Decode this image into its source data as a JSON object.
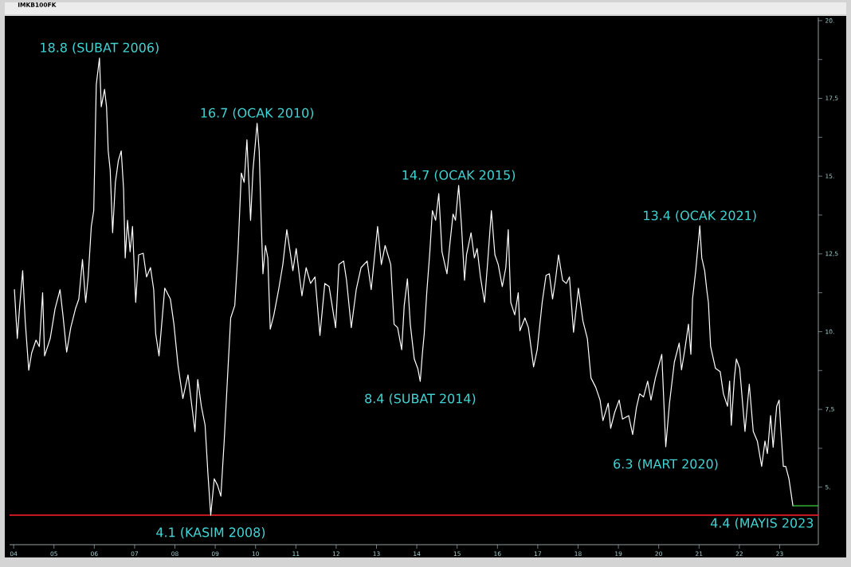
{
  "chart_data": {
    "type": "line",
    "title": "IMKB100FK",
    "series": [
      {
        "color": "#ffffff",
        "x": [
          "2004-01-08",
          "2004-02-03",
          "2004-02-25",
          "2004-03-23",
          "2004-04-15",
          "2004-05-17",
          "2004-06-13",
          "2004-07-22",
          "2004-08-21",
          "2004-09-20",
          "2004-10-08",
          "2004-11-28",
          "2005-01-11",
          "2005-02-25",
          "2005-03-23",
          "2005-04-26",
          "2005-06-02",
          "2005-07-15",
          "2005-08-14",
          "2005-09-16",
          "2005-10-15",
          "2005-11-07",
          "2005-12-05",
          "2005-12-27",
          "2006-01-19",
          "2006-02-17",
          "2006-03-05",
          "2006-04-04",
          "2006-04-22",
          "2006-05-07",
          "2006-05-25",
          "2006-06-16",
          "2006-07-11",
          "2006-08-07",
          "2006-09-02",
          "2006-09-23",
          "2006-10-08",
          "2006-10-29",
          "2006-11-21",
          "2006-12-13",
          "2007-01-11",
          "2007-02-07",
          "2007-03-20",
          "2007-04-19",
          "2007-05-25",
          "2007-06-23",
          "2007-07-11",
          "2007-08-10",
          "2007-10-01",
          "2007-11-21",
          "2007-12-23",
          "2008-01-29",
          "2008-03-13",
          "2008-04-29",
          "2008-07-01",
          "2008-07-26",
          "2008-08-28",
          "2008-10-01",
          "2008-10-26",
          "2008-11-21",
          "2008-12-23",
          "2009-01-22",
          "2009-02-21",
          "2009-03-23",
          "2009-04-22",
          "2009-05-21",
          "2009-06-27",
          "2009-07-26",
          "2009-08-25",
          "2009-09-20",
          "2009-10-15",
          "2009-11-17",
          "2009-12-09",
          "2010-01-15",
          "2010-02-03",
          "2010-02-21",
          "2010-03-09",
          "2010-04-01",
          "2010-04-22",
          "2010-05-14",
          "2010-06-16",
          "2010-07-29",
          "2010-09-05",
          "2010-10-11",
          "2010-11-10",
          "2010-12-05",
          "2011-01-04",
          "2011-02-03",
          "2011-02-25",
          "2011-04-04",
          "2011-05-14",
          "2011-06-23",
          "2011-08-07",
          "2011-09-20",
          "2011-10-29",
          "2011-12-27",
          "2012-01-26",
          "2012-03-09",
          "2012-04-04",
          "2012-05-17",
          "2012-07-01",
          "2012-08-14",
          "2012-10-08",
          "2012-11-14",
          "2013-01-11",
          "2013-02-14",
          "2013-03-20",
          "2013-05-10",
          "2013-06-09",
          "2013-07-11",
          "2013-08-17",
          "2013-09-09",
          "2013-10-08",
          "2013-11-03",
          "2013-12-09",
          "2014-01-11",
          "2014-02-01",
          "2014-02-21",
          "2014-03-09",
          "2014-04-01",
          "2014-04-29",
          "2014-05-22",
          "2014-06-20",
          "2014-07-19",
          "2014-08-17",
          "2014-10-01",
          "2014-10-26",
          "2014-11-25",
          "2014-12-17",
          "2015-01-15",
          "2015-02-10",
          "2015-03-09",
          "2015-03-27",
          "2015-05-07",
          "2015-06-06",
          "2015-07-01",
          "2015-07-31",
          "2015-09-06",
          "2015-10-05",
          "2015-11-07",
          "2015-12-09",
          "2016-01-08",
          "2016-02-14",
          "2016-03-17",
          "2016-04-08",
          "2016-05-01",
          "2016-06-06",
          "2016-07-08",
          "2016-07-23",
          "2016-09-06",
          "2016-10-08",
          "2016-11-24",
          "2016-12-27",
          "2017-02-10",
          "2017-03-17",
          "2017-04-16",
          "2017-05-15",
          "2017-06-10",
          "2017-07-08",
          "2017-08-14",
          "2017-09-16",
          "2017-10-15",
          "2017-11-21",
          "2018-01-04",
          "2018-02-14",
          "2018-03-26",
          "2018-04-28",
          "2018-06-10",
          "2018-07-19",
          "2018-08-14",
          "2018-10-01",
          "2018-10-23",
          "2018-11-28",
          "2019-01-08",
          "2019-02-07",
          "2019-04-04",
          "2019-05-10",
          "2019-06-13",
          "2019-07-12",
          "2019-08-17",
          "2019-09-23",
          "2019-10-23",
          "2019-12-02",
          "2020-01-29",
          "2020-03-05",
          "2020-04-08",
          "2020-05-22",
          "2020-07-05",
          "2020-07-26",
          "2020-08-25",
          "2020-09-27",
          "2020-10-19",
          "2020-11-03",
          "2020-12-02",
          "2021-01-08",
          "2021-01-26",
          "2021-02-21",
          "2021-03-12",
          "2021-03-27",
          "2021-04-16",
          "2021-05-30",
          "2021-07-12",
          "2021-08-10",
          "2021-09-16",
          "2021-10-05",
          "2021-10-20",
          "2021-11-17",
          "2021-12-05",
          "2022-01-04",
          "2022-02-21",
          "2022-04-01",
          "2022-05-07",
          "2022-06-13",
          "2022-07-22",
          "2022-08-21",
          "2022-09-12",
          "2022-10-11",
          "2022-11-03",
          "2022-12-05",
          "2022-12-27",
          "2023-01-11",
          "2023-02-03",
          "2023-02-25",
          "2023-03-26",
          "2023-05-01"
        ],
        "values": [
          11.35,
          9.78,
          10.84,
          11.96,
          10.34,
          8.76,
          9.32,
          9.73,
          9.52,
          11.25,
          9.22,
          9.78,
          10.74,
          11.35,
          10.54,
          9.34,
          10.13,
          10.74,
          11.05,
          12.32,
          10.94,
          11.76,
          13.38,
          13.89,
          17.94,
          18.8,
          17.23,
          17.79,
          17.23,
          15.81,
          15.2,
          13.18,
          14.8,
          15.5,
          15.81,
          14.6,
          12.37,
          13.58,
          12.57,
          13.38,
          10.94,
          12.47,
          12.52,
          11.76,
          12.06,
          11.35,
          9.93,
          9.22,
          11.4,
          11.05,
          10.24,
          8.92,
          7.85,
          8.61,
          6.79,
          8.46,
          7.6,
          6.99,
          5.47,
          4.1,
          5.27,
          5.06,
          4.71,
          6.48,
          8.51,
          10.44,
          10.84,
          12.57,
          15.1,
          14.8,
          16.17,
          13.58,
          15.2,
          16.7,
          15.81,
          13.58,
          11.86,
          12.77,
          12.37,
          10.08,
          10.54,
          11.35,
          12.16,
          13.28,
          12.57,
          11.96,
          12.67,
          11.76,
          11.15,
          12.06,
          11.55,
          11.76,
          9.88,
          11.55,
          11.45,
          10.13,
          12.16,
          12.27,
          11.65,
          10.13,
          11.35,
          12.06,
          12.27,
          11.35,
          13.38,
          12.16,
          12.77,
          12.16,
          10.24,
          10.13,
          9.42,
          10.84,
          11.7,
          10.24,
          9.12,
          8.8,
          8.4,
          9.32,
          9.93,
          11.25,
          12.57,
          13.89,
          13.58,
          14.44,
          12.57,
          11.86,
          12.77,
          13.78,
          13.58,
          14.7,
          13.38,
          11.65,
          12.47,
          13.18,
          12.37,
          12.67,
          11.76,
          10.94,
          12.26,
          13.89,
          12.47,
          12.16,
          11.45,
          12.06,
          13.28,
          10.94,
          10.54,
          11.25,
          10.03,
          10.44,
          10.13,
          8.87,
          9.42,
          10.94,
          11.81,
          11.86,
          11.05,
          11.65,
          12.47,
          11.65,
          11.55,
          11.76,
          9.98,
          11.4,
          10.34,
          9.78,
          8.51,
          8.21,
          7.8,
          7.14,
          7.7,
          6.89,
          7.4,
          7.8,
          7.19,
          7.3,
          6.69,
          7.55,
          8.0,
          7.9,
          8.41,
          7.8,
          8.51,
          9.27,
          6.3,
          7.7,
          9.02,
          9.63,
          8.77,
          9.42,
          10.24,
          9.27,
          11.05,
          11.96,
          13.4,
          12.37,
          11.96,
          11.35,
          10.94,
          9.52,
          8.82,
          8.71,
          8.0,
          7.6,
          8.41,
          6.99,
          8.51,
          9.12,
          8.82,
          6.79,
          8.31,
          6.79,
          6.48,
          5.67,
          6.48,
          6.08,
          7.3,
          6.28,
          7.6,
          7.8,
          6.89,
          5.67,
          5.67,
          5.27,
          4.4
        ]
      },
      {
        "color": "#3ed23e",
        "x": [
          "2023-05-01",
          "2023-12-15"
        ],
        "values": [
          4.4,
          4.4
        ]
      }
    ],
    "xlim": [
      "2003-11-25",
      "2023-12-17"
    ],
    "xticks": [
      {
        "value": "2004",
        "label": "04"
      },
      {
        "value": "2005",
        "label": "05"
      },
      {
        "value": "2006",
        "label": "06"
      },
      {
        "value": "2007",
        "label": "07"
      },
      {
        "value": "2008",
        "label": "08"
      },
      {
        "value": "2009",
        "label": "09"
      },
      {
        "value": "2010",
        "label": "10"
      },
      {
        "value": "2011",
        "label": "11"
      },
      {
        "value": "2012",
        "label": "12"
      },
      {
        "value": "2013",
        "label": "13"
      },
      {
        "value": "2014",
        "label": "14"
      },
      {
        "value": "2015",
        "label": "15"
      },
      {
        "value": "2016",
        "label": "16"
      },
      {
        "value": "2017",
        "label": "17"
      },
      {
        "value": "2018",
        "label": "18"
      },
      {
        "value": "2019",
        "label": "19"
      },
      {
        "value": "2020",
        "label": "20"
      },
      {
        "value": "2021",
        "label": "21"
      },
      {
        "value": "2022",
        "label": "22"
      },
      {
        "value": "2023",
        "label": "23"
      }
    ],
    "ylim": [
      3.15,
      20.1
    ],
    "yticks": [
      {
        "value": 5,
        "label": "5."
      },
      {
        "value": 6.25,
        "label": null
      },
      {
        "value": 7.5,
        "label": "7,5"
      },
      {
        "value": 8.75,
        "label": null
      },
      {
        "value": 10,
        "label": "10."
      },
      {
        "value": 11.25,
        "label": null
      },
      {
        "value": 12.5,
        "label": "12,5"
      },
      {
        "value": 13.75,
        "label": null
      },
      {
        "value": 15,
        "label": "15."
      },
      {
        "value": 16.25,
        "label": null
      },
      {
        "value": 17.5,
        "label": "17,5"
      },
      {
        "value": 18.75,
        "label": null
      },
      {
        "value": 20,
        "label": "20."
      }
    ],
    "ref_lines": [
      {
        "axis": "y",
        "value": 4.1,
        "color": "#e01e26"
      }
    ],
    "annotations": [
      {
        "text": "18.8 (SUBAT 2006)",
        "x": "2006-02-17",
        "y": 18.8
      },
      {
        "text": "16.7 (OCAK 2010)",
        "x": "2010-01-15",
        "y": 16.7
      },
      {
        "text": "14.7 (OCAK 2015)",
        "x": "2015-01-15",
        "y": 14.7
      },
      {
        "text": "13.4 (OCAK 2021)",
        "x": "2021-01-08",
        "y": 13.4
      },
      {
        "text": "8.4 (SUBAT 2014)",
        "x": "2014-02-01",
        "y": 8.4
      },
      {
        "text": "6.3 (MART 2020)",
        "x": "2020-03-05",
        "y": 6.3
      },
      {
        "text": "4.1 (KASIM 2008)",
        "x": "2008-11-21",
        "y": 4.1
      },
      {
        "text": "4.4 (MAYIS 2023",
        "x": "2023-05-01",
        "y": 4.4
      }
    ]
  }
}
